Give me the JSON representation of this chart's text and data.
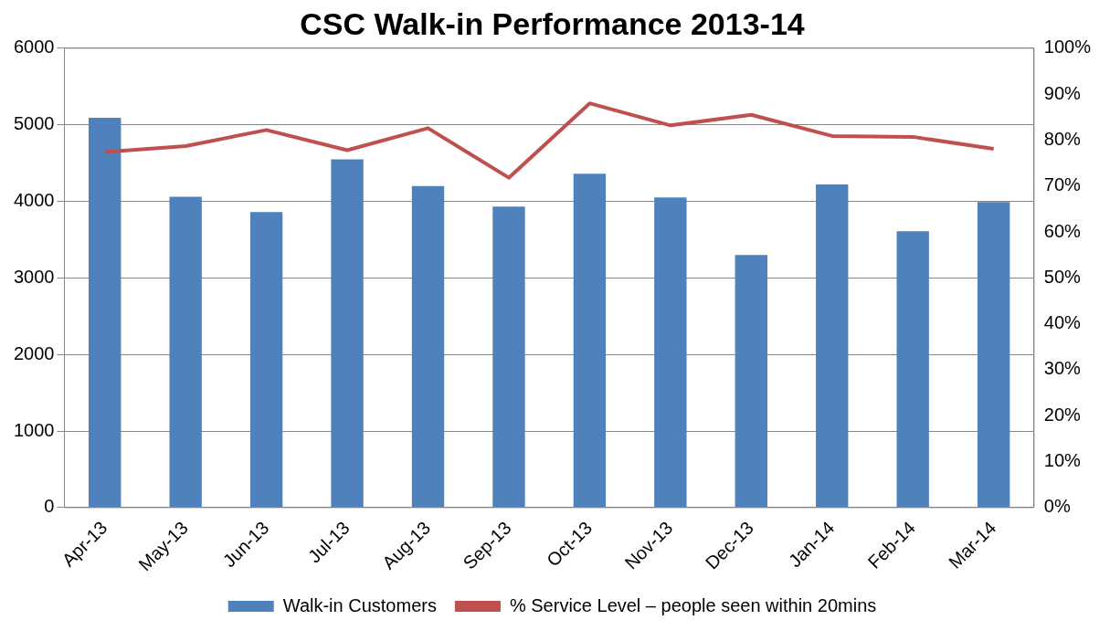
{
  "chart_data": {
    "type": "bar",
    "title": "CSC Walk-in Performance 2013-14",
    "categories": [
      "Apr-13",
      "May-13",
      "Jun-13",
      "Jul-13",
      "Aug-13",
      "Sep-13",
      "Oct-13",
      "Nov-13",
      "Dec-13",
      "Jan-14",
      "Feb-14",
      "Mar-14"
    ],
    "series": [
      {
        "name": "Walk-in Customers",
        "color": "#4f81bd",
        "values": [
          5090,
          4060,
          3860,
          4550,
          4200,
          3930,
          4360,
          4050,
          3300,
          4220,
          3610,
          3990
        ]
      },
      {
        "name": "% Service Level – people seen within 20mins",
        "type": "line",
        "axis": "y2",
        "color": "#c0504d",
        "values": [
          77.4,
          78.7,
          82.2,
          77.8,
          82.6,
          71.8,
          88.0,
          83.2,
          85.5,
          80.9,
          80.7,
          78.1
        ]
      }
    ],
    "ylim": [
      0,
      6000
    ],
    "yticks": [
      0,
      1000,
      2000,
      3000,
      4000,
      5000,
      6000
    ],
    "y2lim": [
      0,
      100
    ],
    "y2ticks": [
      {
        "value": 0,
        "label": "0%"
      },
      {
        "value": 10,
        "label": "10%"
      },
      {
        "value": 20,
        "label": "20%"
      },
      {
        "value": 30,
        "label": "30%"
      },
      {
        "value": 40,
        "label": "40%"
      },
      {
        "value": 50,
        "label": "50%"
      },
      {
        "value": 60,
        "label": "60%"
      },
      {
        "value": 70,
        "label": "70%"
      },
      {
        "value": 80,
        "label": "80%"
      },
      {
        "value": 90,
        "label": "90%"
      },
      {
        "value": 100,
        "label": "100%"
      }
    ],
    "grid": "y",
    "legend": "bottom",
    "marker": "none",
    "line_style": "solid"
  }
}
